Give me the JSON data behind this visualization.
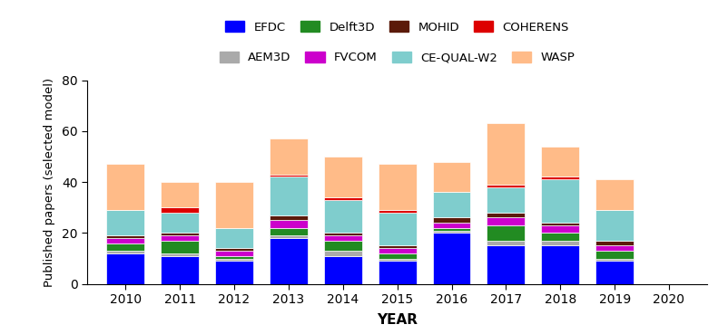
{
  "years": [
    2010,
    2011,
    2012,
    2013,
    2014,
    2015,
    2016,
    2017,
    2018,
    2019
  ],
  "series": {
    "EFDC": [
      12,
      11,
      9,
      18,
      11,
      9,
      20,
      15,
      15,
      9
    ],
    "AEM3D": [
      1,
      1,
      1,
      1,
      2,
      1,
      1,
      2,
      2,
      1
    ],
    "Delft3D": [
      3,
      5,
      1,
      3,
      4,
      2,
      1,
      6,
      3,
      3
    ],
    "FVCOM": [
      2,
      2,
      2,
      3,
      2,
      2,
      2,
      3,
      3,
      2
    ],
    "MOHID": [
      1,
      1,
      1,
      2,
      1,
      1,
      2,
      2,
      1,
      2
    ],
    "CE-QUAL-W2": [
      10,
      8,
      8,
      15,
      13,
      13,
      10,
      10,
      17,
      12
    ],
    "COHERENS": [
      0,
      2,
      0,
      1,
      1,
      1,
      0,
      1,
      1,
      0
    ],
    "WASP": [
      18,
      10,
      18,
      14,
      16,
      18,
      12,
      24,
      12,
      12
    ]
  },
  "colors": {
    "EFDC": "#0000ff",
    "AEM3D": "#aaaaaa",
    "Delft3D": "#228B22",
    "FVCOM": "#cc00cc",
    "MOHID": "#5B1A0A",
    "CE-QUAL-W2": "#7FCDCD",
    "COHERENS": "#dd0000",
    "WASP": "#FFBB88"
  },
  "xlabel": "YEAR",
  "ylabel": "Published papers (selected model)",
  "ylim": [
    0,
    80
  ],
  "yticks": [
    0,
    20,
    40,
    60,
    80
  ],
  "bar_width": 0.7,
  "legend_row1": [
    "EFDC",
    "Delft3D",
    "MOHID",
    "COHERENS"
  ],
  "legend_row2": [
    "AEM3D",
    "FVCOM",
    "CE-QUAL-W2",
    "WASP"
  ]
}
